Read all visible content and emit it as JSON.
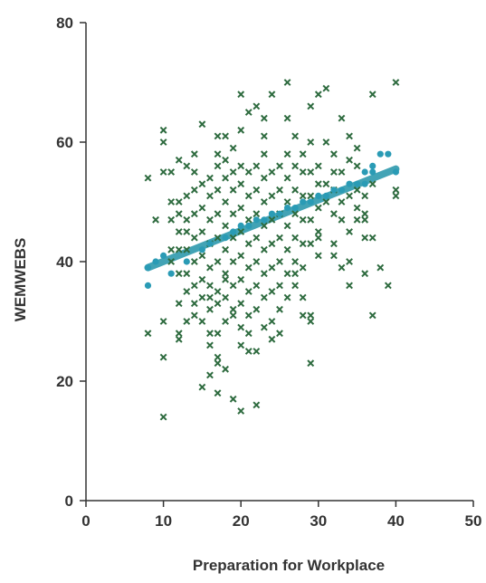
{
  "chart_data": {
    "type": "scatter",
    "title": "",
    "xlabel": "Preparation for Workplace",
    "ylabel": "WEMWEBS",
    "xlim": [
      0,
      50
    ],
    "ylim": [
      0,
      80
    ],
    "xticks": [
      0,
      10,
      20,
      30,
      40,
      50
    ],
    "yticks": [
      0,
      20,
      40,
      60,
      80
    ],
    "grid": false,
    "colors": {
      "observed": "#2e6b3f",
      "fitted": "#2a9bb5",
      "fit_line": "#2e9aae",
      "axis": "#333333"
    },
    "series": [
      {
        "marker": "x",
        "points": [
          [
            8,
            54
          ],
          [
            10,
            55
          ],
          [
            10,
            60
          ],
          [
            10,
            62
          ],
          [
            11,
            55
          ],
          [
            12,
            57
          ],
          [
            9,
            47
          ],
          [
            11,
            42
          ],
          [
            11,
            40
          ],
          [
            8,
            28
          ],
          [
            10,
            30
          ],
          [
            12,
            28
          ],
          [
            12,
            27
          ],
          [
            10,
            24
          ],
          [
            10,
            14
          ],
          [
            12,
            42
          ],
          [
            12,
            45
          ],
          [
            12,
            48
          ],
          [
            12,
            50
          ],
          [
            13,
            38
          ],
          [
            13,
            42
          ],
          [
            13,
            45
          ],
          [
            13,
            47
          ],
          [
            13,
            51
          ],
          [
            14,
            33
          ],
          [
            14,
            36
          ],
          [
            14,
            40
          ],
          [
            14,
            44
          ],
          [
            14,
            48
          ],
          [
            14,
            52
          ],
          [
            14,
            55
          ],
          [
            15,
            30
          ],
          [
            15,
            34
          ],
          [
            15,
            37
          ],
          [
            15,
            41
          ],
          [
            15,
            45
          ],
          [
            15,
            49
          ],
          [
            15,
            63
          ],
          [
            16,
            26
          ],
          [
            16,
            32
          ],
          [
            16,
            36
          ],
          [
            16,
            39
          ],
          [
            16,
            43
          ],
          [
            16,
            47
          ],
          [
            16,
            51
          ],
          [
            16,
            54
          ],
          [
            16,
            21
          ],
          [
            17,
            58
          ],
          [
            17,
            24
          ],
          [
            17,
            28
          ],
          [
            17,
            35
          ],
          [
            17,
            40
          ],
          [
            17,
            44
          ],
          [
            17,
            48
          ],
          [
            17,
            52
          ],
          [
            17,
            56
          ],
          [
            17,
            61
          ],
          [
            18,
            30
          ],
          [
            18,
            34
          ],
          [
            18,
            38
          ],
          [
            18,
            42
          ],
          [
            18,
            46
          ],
          [
            18,
            50
          ],
          [
            18,
            54
          ],
          [
            18,
            57
          ],
          [
            19,
            32
          ],
          [
            19,
            36
          ],
          [
            19,
            40
          ],
          [
            19,
            44
          ],
          [
            19,
            48
          ],
          [
            19,
            52
          ],
          [
            19,
            55
          ],
          [
            20,
            29
          ],
          [
            20,
            33
          ],
          [
            20,
            37
          ],
          [
            20,
            41
          ],
          [
            20,
            45
          ],
          [
            20,
            49
          ],
          [
            20,
            53
          ],
          [
            20,
            56
          ],
          [
            20,
            68
          ],
          [
            21,
            31
          ],
          [
            21,
            35
          ],
          [
            21,
            39
          ],
          [
            21,
            43
          ],
          [
            21,
            47
          ],
          [
            21,
            51
          ],
          [
            21,
            55
          ],
          [
            21,
            65
          ],
          [
            22,
            32
          ],
          [
            22,
            36
          ],
          [
            22,
            40
          ],
          [
            22,
            44
          ],
          [
            22,
            48
          ],
          [
            22,
            52
          ],
          [
            22,
            56
          ],
          [
            22,
            66
          ],
          [
            23,
            34
          ],
          [
            23,
            38
          ],
          [
            23,
            42
          ],
          [
            23,
            46
          ],
          [
            23,
            50
          ],
          [
            23,
            54
          ],
          [
            23,
            58
          ],
          [
            23,
            64
          ],
          [
            24,
            30
          ],
          [
            24,
            35
          ],
          [
            24,
            39
          ],
          [
            24,
            43
          ],
          [
            24,
            47
          ],
          [
            24,
            51
          ],
          [
            24,
            55
          ],
          [
            24,
            68
          ],
          [
            25,
            32
          ],
          [
            25,
            36
          ],
          [
            25,
            40
          ],
          [
            25,
            44
          ],
          [
            25,
            48
          ],
          [
            25,
            52
          ],
          [
            25,
            56
          ],
          [
            26,
            70
          ],
          [
            26,
            64
          ],
          [
            26,
            34
          ],
          [
            26,
            38
          ],
          [
            26,
            42
          ],
          [
            26,
            46
          ],
          [
            26,
            50
          ],
          [
            26,
            54
          ],
          [
            26,
            58
          ],
          [
            27,
            36
          ],
          [
            27,
            40
          ],
          [
            27,
            44
          ],
          [
            27,
            48
          ],
          [
            27,
            52
          ],
          [
            27,
            56
          ],
          [
            27,
            61
          ],
          [
            28,
            34
          ],
          [
            28,
            39
          ],
          [
            28,
            43
          ],
          [
            28,
            47
          ],
          [
            28,
            51
          ],
          [
            28,
            55
          ],
          [
            28,
            58
          ],
          [
            29,
            23
          ],
          [
            29,
            30
          ],
          [
            29,
            31
          ],
          [
            29,
            43
          ],
          [
            29,
            47
          ],
          [
            29,
            51
          ],
          [
            29,
            55
          ],
          [
            29,
            60
          ],
          [
            29,
            66
          ],
          [
            30,
            41
          ],
          [
            30,
            45
          ],
          [
            30,
            49
          ],
          [
            30,
            53
          ],
          [
            30,
            56
          ],
          [
            30,
            68
          ],
          [
            31,
            50
          ],
          [
            31,
            53
          ],
          [
            31,
            60
          ],
          [
            31,
            69
          ],
          [
            32,
            41
          ],
          [
            32,
            48
          ],
          [
            32,
            52
          ],
          [
            32,
            55
          ],
          [
            32,
            58
          ],
          [
            33,
            39
          ],
          [
            33,
            47
          ],
          [
            33,
            50
          ],
          [
            33,
            55
          ],
          [
            33,
            64
          ],
          [
            34,
            36
          ],
          [
            34,
            45
          ],
          [
            34,
            51
          ],
          [
            34,
            57
          ],
          [
            34,
            61
          ],
          [
            35,
            49
          ],
          [
            35,
            52
          ],
          [
            35,
            56
          ],
          [
            35,
            59
          ],
          [
            36,
            38
          ],
          [
            36,
            44
          ],
          [
            36,
            47
          ],
          [
            36,
            51
          ],
          [
            37,
            31
          ],
          [
            37,
            44
          ],
          [
            37,
            53
          ],
          [
            37,
            68
          ],
          [
            40,
            52
          ],
          [
            40,
            51
          ],
          [
            40,
            70
          ],
          [
            20,
            26
          ],
          [
            21,
            25
          ],
          [
            22,
            25
          ],
          [
            20,
            15
          ],
          [
            19,
            17
          ],
          [
            17,
            18
          ],
          [
            15,
            19
          ],
          [
            17,
            23
          ],
          [
            18,
            22
          ],
          [
            16,
            28
          ],
          [
            13,
            35
          ],
          [
            12,
            33
          ],
          [
            12,
            38
          ],
          [
            11,
            50
          ],
          [
            13,
            56
          ],
          [
            11,
            47
          ],
          [
            15,
            53
          ],
          [
            14,
            58
          ],
          [
            22,
            16
          ],
          [
            25,
            28
          ],
          [
            24,
            27
          ],
          [
            23,
            29
          ],
          [
            21,
            28
          ],
          [
            19,
            31
          ],
          [
            18,
            37
          ],
          [
            17,
            33
          ],
          [
            16,
            34
          ],
          [
            14,
            31
          ],
          [
            13,
            30
          ],
          [
            19,
            59
          ],
          [
            18,
            61
          ],
          [
            20,
            62
          ],
          [
            23,
            61
          ],
          [
            27,
            38
          ],
          [
            28,
            31
          ],
          [
            30,
            44
          ],
          [
            32,
            43
          ],
          [
            34,
            40
          ],
          [
            35,
            47
          ],
          [
            36,
            48
          ],
          [
            38,
            39
          ],
          [
            39,
            36
          ]
        ]
      },
      {
        "marker": "circle",
        "points": [
          [
            8,
            36
          ],
          [
            8,
            39
          ],
          [
            9,
            40
          ],
          [
            10,
            41
          ],
          [
            11,
            38
          ],
          [
            13,
            40
          ],
          [
            15,
            42
          ],
          [
            16,
            43
          ],
          [
            18,
            44
          ],
          [
            19,
            45
          ],
          [
            20,
            46
          ],
          [
            21,
            46
          ],
          [
            22,
            47
          ],
          [
            23,
            47
          ],
          [
            24,
            48
          ],
          [
            25,
            48
          ],
          [
            26,
            49
          ],
          [
            27,
            49
          ],
          [
            28,
            50
          ],
          [
            29,
            50
          ],
          [
            30,
            51
          ],
          [
            31,
            51
          ],
          [
            32,
            52
          ],
          [
            33,
            52
          ],
          [
            34,
            53
          ],
          [
            35,
            53
          ],
          [
            36,
            53
          ],
          [
            37,
            55
          ],
          [
            38,
            58
          ],
          [
            39,
            58
          ],
          [
            40,
            55
          ],
          [
            36,
            55
          ],
          [
            37,
            56
          ]
        ]
      },
      {
        "name": "",
        "type": "line",
        "x": [
          8,
          40
        ],
        "y": [
          39,
          55.5
        ]
      }
    ]
  }
}
